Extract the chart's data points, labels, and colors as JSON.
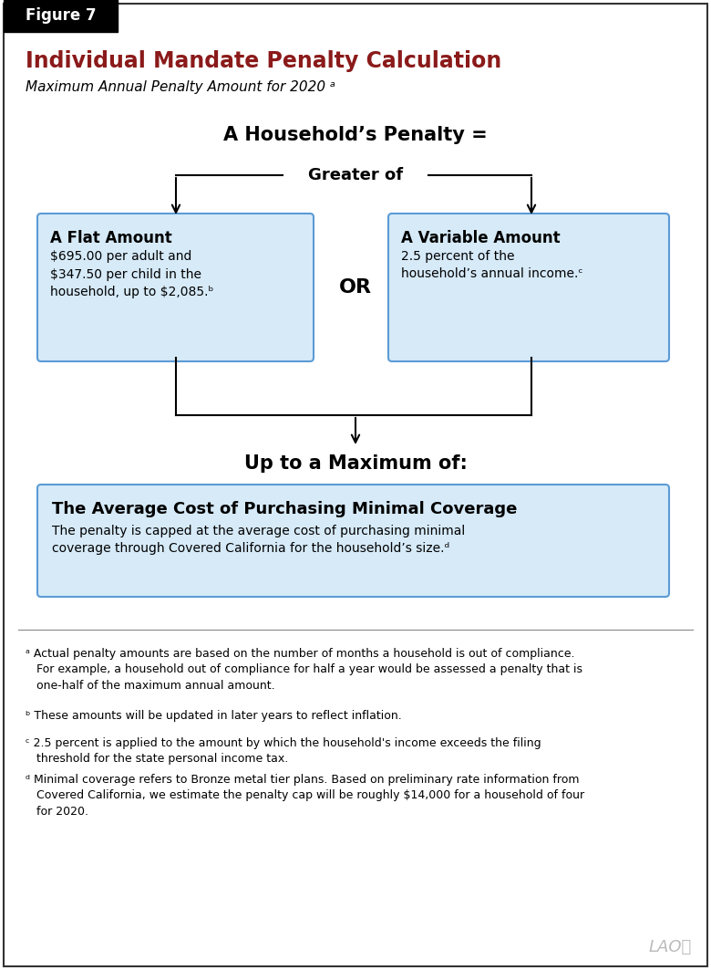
{
  "figure_label": "Figure 7",
  "title": "Individual Mandate Penalty Calculation",
  "subtitle": "Maximum Annual Penalty Amount for 2020 ᵃ",
  "title_color": "#8B1A1A",
  "background_color": "#FFFFFF",
  "box_fill_color": "#D6EAF8",
  "box_border_color": "#5B9BD5",
  "household_penalty_text": "A Household’s Penalty =",
  "greater_of_text": "Greater of",
  "or_text": "OR",
  "up_to_max_text": "Up to a Maximum of:",
  "flat_amount_title": "A Flat Amount",
  "flat_amount_body": "$695.00 per adult and\n$347.50 per child in the\nhousehold, up to $2,085.ᵇ",
  "variable_amount_title": "A Variable Amount",
  "variable_amount_body": "2.5 percent of the\nhousehold’s annual income.ᶜ",
  "max_box_title": "The Average Cost of Purchasing Minimal Coverage",
  "max_box_body": "The penalty is capped at the average cost of purchasing minimal\ncoverage through Covered California for the household’s size.ᵈ",
  "footnote_a": "ᵃ Actual penalty amounts are based on the number of months a household is out of compliance.\n   For example, a household out of compliance for half a year would be assessed a penalty that is\n   one-half of the maximum annual amount.",
  "footnote_b": "ᵇ These amounts will be updated in later years to reflect inflation.",
  "footnote_c": "ᶜ 2.5 percent is applied to the amount by which the household's income exceeds the filing\n   threshold for the state personal income tax.",
  "footnote_d": "ᵈ Minimal coverage refers to Bronze metal tier plans. Based on preliminary rate information from\n   Covered California, we estimate the penalty cap will be roughly $14,000 for a household of four\n   for 2020.",
  "lao_watermark": "LAO⩲"
}
